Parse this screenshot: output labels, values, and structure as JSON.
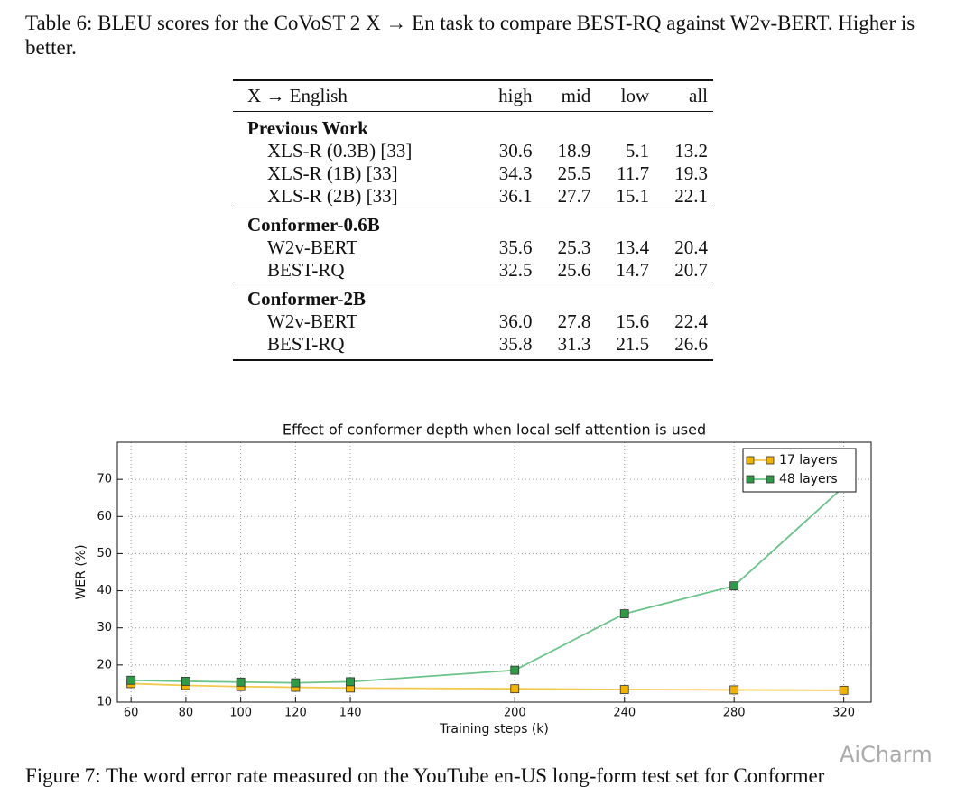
{
  "table": {
    "caption": "Table 6: BLEU scores for the CoVoST 2 X → En task to compare BEST-RQ against W2v-BERT. Higher is better.",
    "header": [
      "X → English",
      "high",
      "mid",
      "low",
      "all"
    ],
    "groups": [
      {
        "name": "Previous Work",
        "rows": [
          [
            "XLS-R (0.3B) [33]",
            "30.6",
            "18.9",
            "5.1",
            "13.2"
          ],
          [
            "XLS-R (1B) [33]",
            "34.3",
            "25.5",
            "11.7",
            "19.3"
          ],
          [
            "XLS-R (2B) [33]",
            "36.1",
            "27.7",
            "15.1",
            "22.1"
          ]
        ]
      },
      {
        "name": "Conformer-0.6B",
        "rows": [
          [
            "W2v-BERT",
            "35.6",
            "25.3",
            "13.4",
            "20.4"
          ],
          [
            "BEST-RQ",
            "32.5",
            "25.6",
            "14.7",
            "20.7"
          ]
        ]
      },
      {
        "name": "Conformer-2B",
        "rows": [
          [
            "W2v-BERT",
            "36.0",
            "27.8",
            "15.6",
            "22.4"
          ],
          [
            "BEST-RQ",
            "35.8",
            "31.3",
            "21.5",
            "26.6"
          ]
        ]
      }
    ]
  },
  "chart_data": {
    "type": "line",
    "title": "Effect of conformer depth when local self attention is used",
    "x_label": "Training steps (k)",
    "y_label": "WER (%)",
    "x": [
      60,
      80,
      100,
      120,
      140,
      200,
      240,
      280,
      320
    ],
    "series": [
      {
        "name": "17 layers",
        "color": "#f0b400",
        "line_color": "#f2c94c",
        "values": [
          15.0,
          14.5,
          14.2,
          14.0,
          13.8,
          13.6,
          13.4,
          13.3,
          13.2
        ]
      },
      {
        "name": "48 layers",
        "color": "#2e9a46",
        "line_color": "#6cc38a",
        "values": [
          15.9,
          15.6,
          15.4,
          15.2,
          15.5,
          18.6,
          33.8,
          41.3,
          68.0
        ]
      }
    ],
    "xlim": [
      55,
      330
    ],
    "ylim": [
      10,
      80
    ],
    "xticks": [
      60,
      80,
      100,
      120,
      140,
      200,
      240,
      280,
      320
    ],
    "yticks": [
      10,
      20,
      30,
      40,
      50,
      60,
      70
    ],
    "grid": true,
    "legend": "upper right"
  },
  "figure_caption": "Figure 7: The word error rate measured on the YouTube en-US long-form test set for Conformer",
  "watermark": "AiCharm"
}
